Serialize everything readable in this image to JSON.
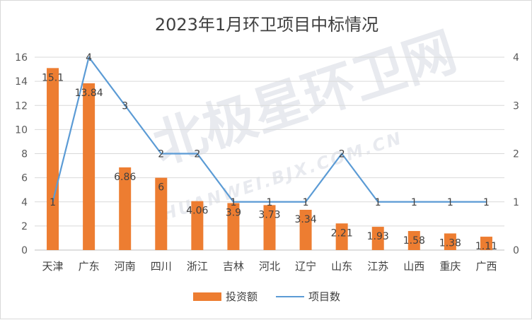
{
  "chart_data": {
    "type": "bar",
    "title": "2023年1月环卫项目中标情况",
    "categories": [
      "天津",
      "广东",
      "河南",
      "四川",
      "浙江",
      "吉林",
      "河北",
      "辽宁",
      "山东",
      "江苏",
      "山西",
      "重庆",
      "广西"
    ],
    "series": [
      {
        "name": "投资额",
        "type": "bar",
        "axis": "left",
        "color": "#ED7D31",
        "values": [
          15.1,
          13.84,
          6.86,
          6,
          4.06,
          3.9,
          3.73,
          3.34,
          2.21,
          1.93,
          1.58,
          1.38,
          1.11
        ]
      },
      {
        "name": "项目数",
        "type": "line",
        "axis": "right",
        "color": "#5B9BD5",
        "values": [
          1,
          4,
          3,
          2,
          2,
          1,
          1,
          1,
          2,
          1,
          1,
          1,
          1
        ]
      }
    ],
    "ylim": [
      0,
      16
    ],
    "y_ticks": [
      0,
      2,
      4,
      6,
      8,
      10,
      12,
      14,
      16
    ],
    "y2lim": [
      0,
      4
    ],
    "y2_ticks": [
      0,
      1,
      2,
      3,
      4
    ],
    "grid": true,
    "legend_position": "bottom"
  },
  "watermark": {
    "text": "北极星环卫网",
    "url": "HUANWEI.BJX.COM.CN"
  }
}
